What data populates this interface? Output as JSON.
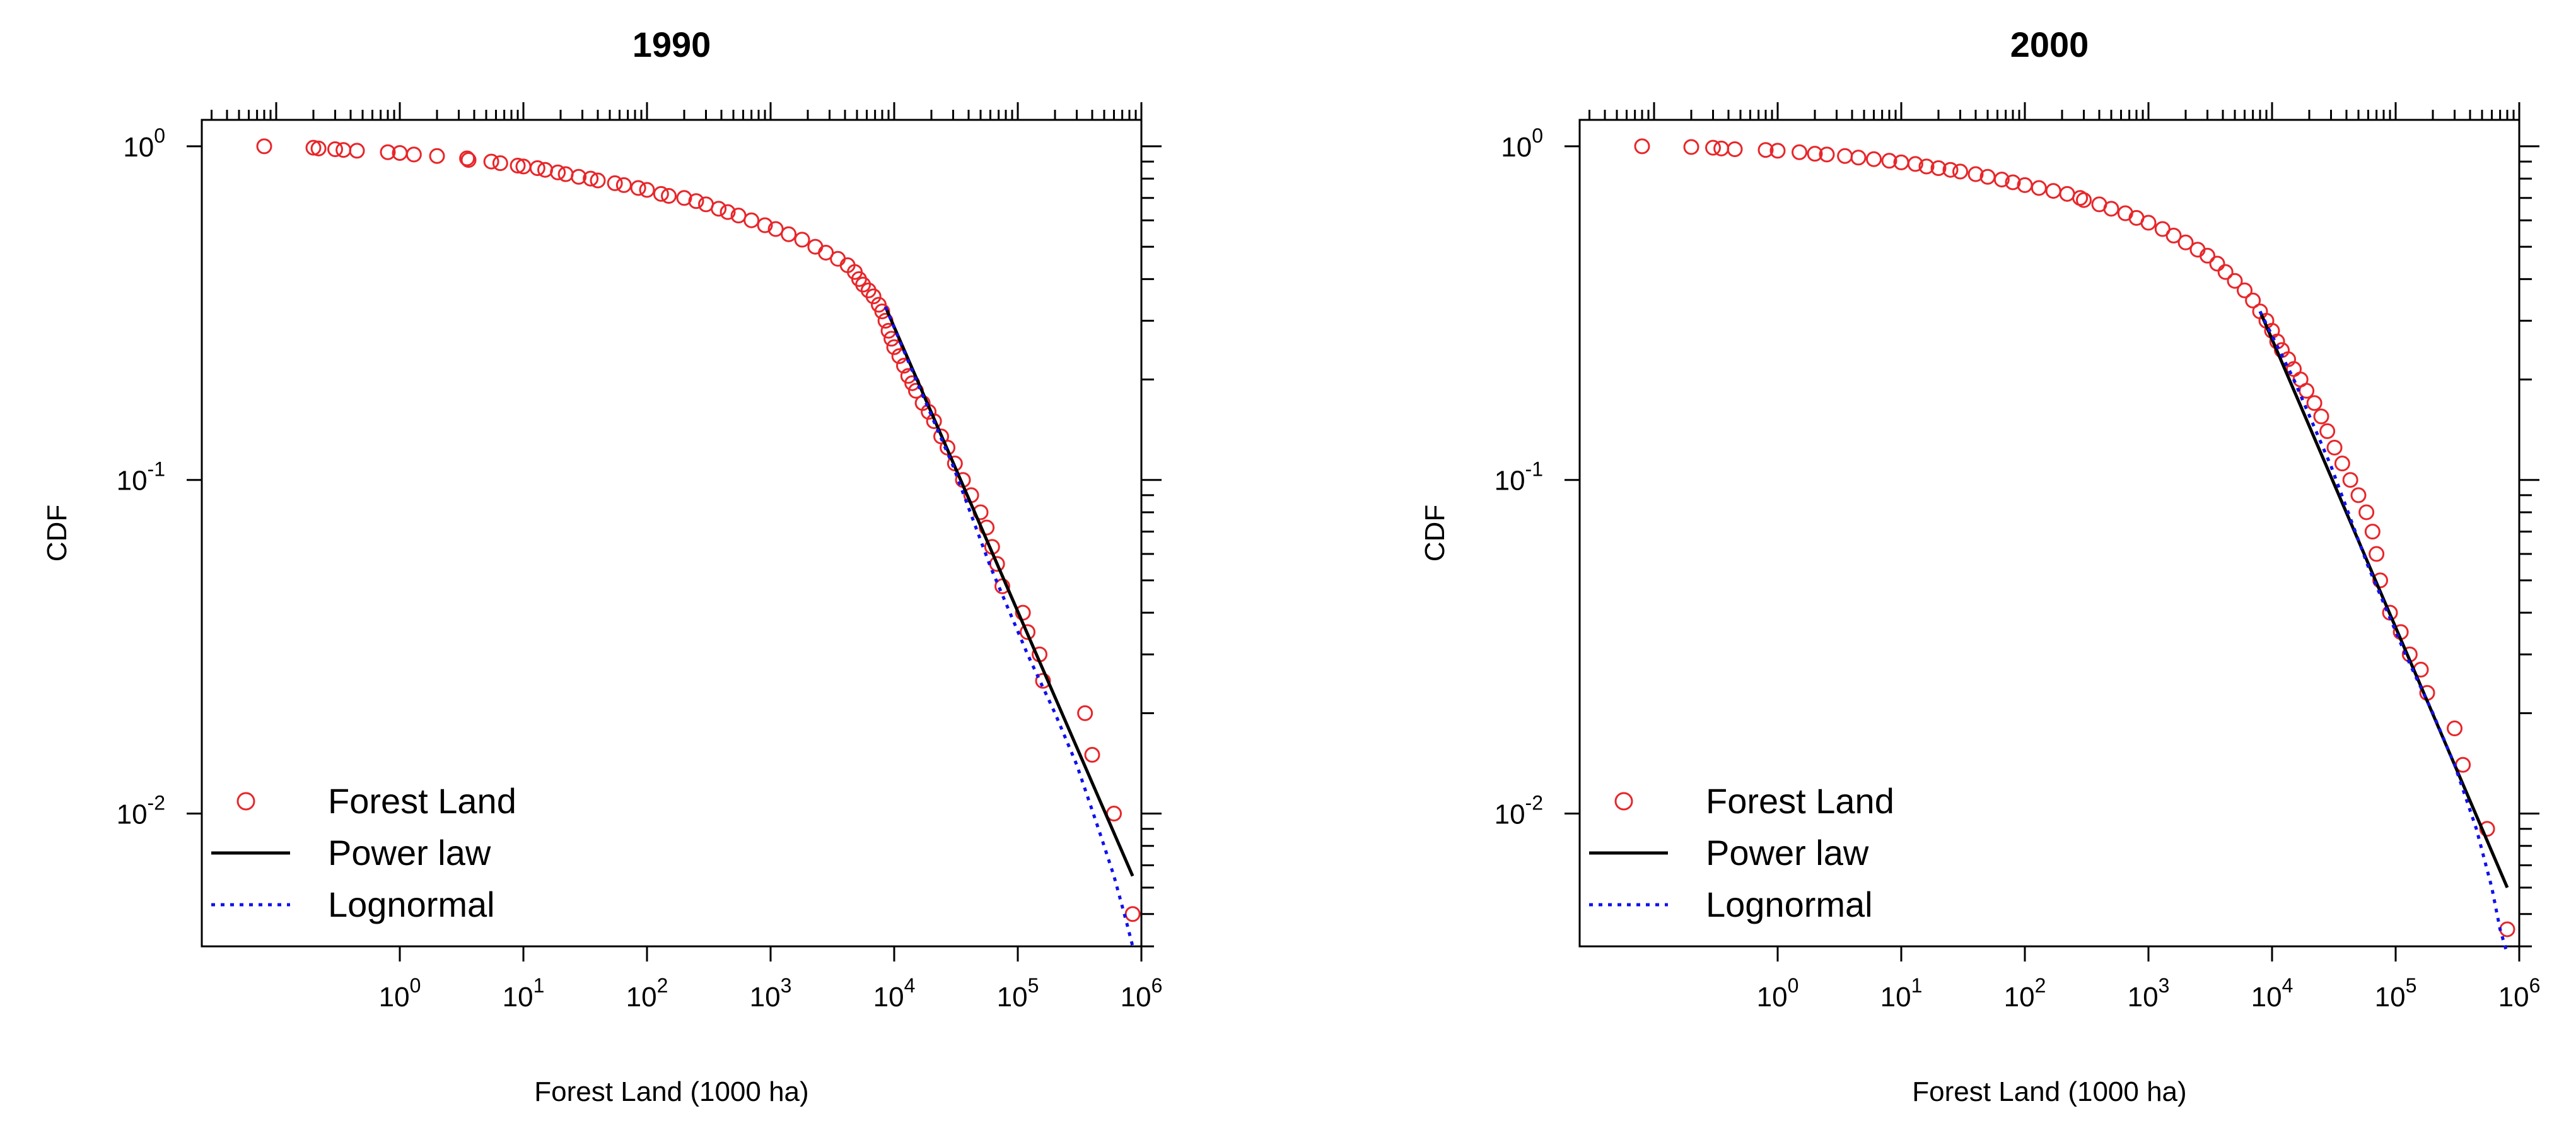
{
  "chart_data": [
    {
      "type": "scatter",
      "title": "1990",
      "xlabel": "Forest Land (1000 ha)",
      "ylabel": "CDF",
      "x_scale": "log",
      "y_scale": "log",
      "xlim": [
        0.025,
        1000000
      ],
      "ylim": [
        0.004,
        1.2
      ],
      "x_tick_labels": [
        {
          "value": 1,
          "base": "10",
          "exp": "0"
        },
        {
          "value": 10,
          "base": "10",
          "exp": "1"
        },
        {
          "value": 100,
          "base": "10",
          "exp": "2"
        },
        {
          "value": 1000,
          "base": "10",
          "exp": "3"
        },
        {
          "value": 10000,
          "base": "10",
          "exp": "4"
        },
        {
          "value": 100000,
          "base": "10",
          "exp": "5"
        },
        {
          "value": 1000000,
          "base": "10",
          "exp": "6"
        }
      ],
      "y_tick_labels": [
        {
          "value": 1,
          "base": "10",
          "exp": "0"
        },
        {
          "value": 0.1,
          "base": "10",
          "exp": "-1"
        },
        {
          "value": 0.01,
          "base": "10",
          "exp": "-2"
        }
      ],
      "legend": {
        "position": "bottom-left",
        "entries": [
          {
            "label": "Forest Land",
            "style": "circle",
            "color": "#e8262a"
          },
          {
            "label": "Power law",
            "style": "solid",
            "color": "#000000"
          },
          {
            "label": "Lognormal",
            "style": "dotted",
            "color": "#1010ee"
          }
        ]
      },
      "series": [
        {
          "name": "Forest Land",
          "style": "circle",
          "color": "#e8262a",
          "points": [
            [
              0.08,
              1.0
            ],
            [
              0.2,
              0.99
            ],
            [
              0.22,
              0.985
            ],
            [
              0.3,
              0.98
            ],
            [
              0.35,
              0.975
            ],
            [
              0.45,
              0.97
            ],
            [
              0.8,
              0.96
            ],
            [
              1.0,
              0.955
            ],
            [
              1.3,
              0.945
            ],
            [
              2.0,
              0.935
            ],
            [
              3.5,
              0.92
            ],
            [
              3.6,
              0.91
            ],
            [
              5.5,
              0.9
            ],
            [
              6.5,
              0.89
            ],
            [
              9,
              0.875
            ],
            [
              10,
              0.87
            ],
            [
              13,
              0.86
            ],
            [
              15,
              0.85
            ],
            [
              19,
              0.835
            ],
            [
              22,
              0.825
            ],
            [
              28,
              0.81
            ],
            [
              35,
              0.8
            ],
            [
              40,
              0.79
            ],
            [
              55,
              0.775
            ],
            [
              65,
              0.765
            ],
            [
              85,
              0.75
            ],
            [
              100,
              0.74
            ],
            [
              130,
              0.72
            ],
            [
              150,
              0.71
            ],
            [
              200,
              0.7
            ],
            [
              250,
              0.685
            ],
            [
              300,
              0.67
            ],
            [
              380,
              0.65
            ],
            [
              450,
              0.635
            ],
            [
              550,
              0.62
            ],
            [
              700,
              0.6
            ],
            [
              900,
              0.58
            ],
            [
              1100,
              0.565
            ],
            [
              1400,
              0.545
            ],
            [
              1800,
              0.525
            ],
            [
              2300,
              0.5
            ],
            [
              2800,
              0.48
            ],
            [
              3500,
              0.46
            ],
            [
              4200,
              0.44
            ],
            [
              4800,
              0.42
            ],
            [
              5200,
              0.4
            ],
            [
              5600,
              0.385
            ],
            [
              6200,
              0.37
            ],
            [
              6800,
              0.355
            ],
            [
              7500,
              0.335
            ],
            [
              8000,
              0.32
            ],
            [
              8500,
              0.3
            ],
            [
              9000,
              0.28
            ],
            [
              9500,
              0.265
            ],
            [
              10000,
              0.25
            ],
            [
              11000,
              0.235
            ],
            [
              12000,
              0.22
            ],
            [
              13000,
              0.205
            ],
            [
              14000,
              0.195
            ],
            [
              15000,
              0.185
            ],
            [
              17000,
              0.17
            ],
            [
              19000,
              0.16
            ],
            [
              21000,
              0.15
            ],
            [
              24000,
              0.135
            ],
            [
              27000,
              0.125
            ],
            [
              31000,
              0.112
            ],
            [
              36000,
              0.1
            ],
            [
              42000,
              0.09
            ],
            [
              50000,
              0.08
            ],
            [
              56000,
              0.072
            ],
            [
              62000,
              0.063
            ],
            [
              68000,
              0.056
            ],
            [
              75000,
              0.048
            ],
            [
              110000,
              0.04
            ],
            [
              120000,
              0.035
            ],
            [
              150000,
              0.03
            ],
            [
              160000,
              0.025
            ],
            [
              350000,
              0.02
            ],
            [
              400000,
              0.015
            ],
            [
              600000,
              0.01
            ],
            [
              850000,
              0.005
            ]
          ]
        },
        {
          "name": "Power law",
          "style": "solid",
          "color": "#000000",
          "x_range": [
            8500,
            850000
          ],
          "start_y": 0.33,
          "end_y": 0.0065
        },
        {
          "name": "Lognormal",
          "style": "dotted",
          "color": "#1010ee",
          "points": [
            [
              8500,
              0.33
            ],
            [
              15000,
              0.2
            ],
            [
              30000,
              0.11
            ],
            [
              60000,
              0.055
            ],
            [
              120000,
              0.03
            ],
            [
              200000,
              0.02
            ],
            [
              300000,
              0.014
            ],
            [
              450000,
              0.009
            ],
            [
              600000,
              0.0065
            ],
            [
              750000,
              0.0048
            ],
            [
              850000,
              0.004
            ]
          ]
        }
      ]
    },
    {
      "type": "scatter",
      "title": "2000",
      "xlabel": "Forest Land (1000 ha)",
      "ylabel": "CDF",
      "x_scale": "log",
      "y_scale": "log",
      "xlim": [
        0.025,
        1000000
      ],
      "ylim": [
        0.004,
        1.2
      ],
      "x_tick_labels": [
        {
          "value": 1,
          "base": "10",
          "exp": "0"
        },
        {
          "value": 10,
          "base": "10",
          "exp": "1"
        },
        {
          "value": 100,
          "base": "10",
          "exp": "2"
        },
        {
          "value": 1000,
          "base": "10",
          "exp": "3"
        },
        {
          "value": 10000,
          "base": "10",
          "exp": "4"
        },
        {
          "value": 100000,
          "base": "10",
          "exp": "5"
        },
        {
          "value": 1000000,
          "base": "10",
          "exp": "6"
        }
      ],
      "y_tick_labels": [
        {
          "value": 1,
          "base": "10",
          "exp": "0"
        },
        {
          "value": 0.1,
          "base": "10",
          "exp": "-1"
        },
        {
          "value": 0.01,
          "base": "10",
          "exp": "-2"
        }
      ],
      "legend": {
        "position": "bottom-left",
        "entries": [
          {
            "label": "Forest Land",
            "style": "circle",
            "color": "#e8262a"
          },
          {
            "label": "Power law",
            "style": "solid",
            "color": "#000000"
          },
          {
            "label": "Lognormal",
            "style": "dotted",
            "color": "#1010ee"
          }
        ]
      },
      "series": [
        {
          "name": "Forest Land",
          "style": "circle",
          "color": "#e8262a",
          "points": [
            [
              0.08,
              1.0
            ],
            [
              0.2,
              0.995
            ],
            [
              0.3,
              0.99
            ],
            [
              0.35,
              0.985
            ],
            [
              0.45,
              0.98
            ],
            [
              0.8,
              0.975
            ],
            [
              1.0,
              0.97
            ],
            [
              1.5,
              0.96
            ],
            [
              2.0,
              0.95
            ],
            [
              2.5,
              0.945
            ],
            [
              3.5,
              0.935
            ],
            [
              4.5,
              0.925
            ],
            [
              6,
              0.915
            ],
            [
              8,
              0.905
            ],
            [
              10,
              0.895
            ],
            [
              13,
              0.885
            ],
            [
              16,
              0.87
            ],
            [
              20,
              0.86
            ],
            [
              25,
              0.85
            ],
            [
              30,
              0.84
            ],
            [
              40,
              0.825
            ],
            [
              50,
              0.81
            ],
            [
              65,
              0.795
            ],
            [
              80,
              0.78
            ],
            [
              100,
              0.765
            ],
            [
              130,
              0.75
            ],
            [
              170,
              0.735
            ],
            [
              220,
              0.72
            ],
            [
              280,
              0.7
            ],
            [
              300,
              0.69
            ],
            [
              400,
              0.67
            ],
            [
              500,
              0.65
            ],
            [
              650,
              0.63
            ],
            [
              800,
              0.61
            ],
            [
              1000,
              0.59
            ],
            [
              1300,
              0.565
            ],
            [
              1600,
              0.54
            ],
            [
              2000,
              0.515
            ],
            [
              2500,
              0.49
            ],
            [
              3000,
              0.47
            ],
            [
              3600,
              0.445
            ],
            [
              4200,
              0.42
            ],
            [
              5000,
              0.395
            ],
            [
              6000,
              0.37
            ],
            [
              7000,
              0.345
            ],
            [
              8000,
              0.32
            ],
            [
              9000,
              0.3
            ],
            [
              10000,
              0.28
            ],
            [
              11000,
              0.26
            ],
            [
              12000,
              0.245
            ],
            [
              13500,
              0.23
            ],
            [
              15000,
              0.215
            ],
            [
              17000,
              0.2
            ],
            [
              19000,
              0.185
            ],
            [
              22000,
              0.17
            ],
            [
              25000,
              0.155
            ],
            [
              28000,
              0.14
            ],
            [
              32000,
              0.125
            ],
            [
              37000,
              0.112
            ],
            [
              43000,
              0.1
            ],
            [
              50000,
              0.09
            ],
            [
              58000,
              0.08
            ],
            [
              65000,
              0.07
            ],
            [
              70000,
              0.06
            ],
            [
              75000,
              0.05
            ],
            [
              90000,
              0.04
            ],
            [
              110000,
              0.035
            ],
            [
              130000,
              0.03
            ],
            [
              160000,
              0.027
            ],
            [
              180000,
              0.023
            ],
            [
              300000,
              0.018
            ],
            [
              350000,
              0.014
            ],
            [
              550000,
              0.009
            ],
            [
              800000,
              0.0045
            ]
          ]
        },
        {
          "name": "Power law",
          "style": "solid",
          "color": "#000000",
          "x_range": [
            8000,
            800000
          ],
          "start_y": 0.32,
          "end_y": 0.006
        },
        {
          "name": "Lognormal",
          "style": "dotted",
          "color": "#1010ee",
          "points": [
            [
              8000,
              0.32
            ],
            [
              15000,
              0.2
            ],
            [
              30000,
              0.11
            ],
            [
              60000,
              0.055
            ],
            [
              120000,
              0.03
            ],
            [
              200000,
              0.02
            ],
            [
              300000,
              0.014
            ],
            [
              450000,
              0.009
            ],
            [
              600000,
              0.006
            ],
            [
              700000,
              0.0045
            ],
            [
              800000,
              0.0038
            ]
          ]
        }
      ]
    }
  ]
}
